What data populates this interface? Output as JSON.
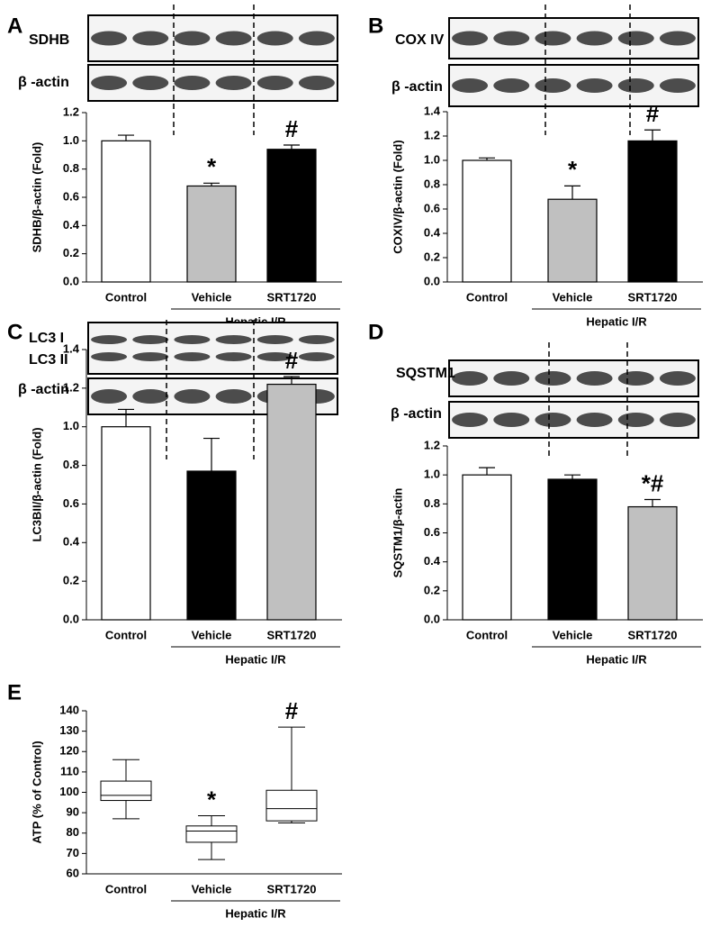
{
  "chart_data": [
    {
      "type": "bar",
      "panel": "A",
      "blot_labels": [
        "SDHB",
        "β -actin"
      ],
      "ylabel": "SDHB/β-actin (Fold)",
      "categories": [
        "Control",
        "Vehicle",
        "SRT1720"
      ],
      "values": [
        1.0,
        0.68,
        0.94
      ],
      "errors": [
        0.04,
        0.02,
        0.03
      ],
      "colors": [
        "#ffffff",
        "#c0c0c0",
        "#000000"
      ],
      "annotations": [
        null,
        "*",
        "#"
      ],
      "group_label": "Hepatic I/R",
      "ylim": [
        0,
        1.2
      ],
      "yticks": [
        {
          "value": 0,
          "label": "0.0"
        },
        {
          "value": 0.2,
          "label": "0.2"
        },
        {
          "value": 0.4,
          "label": "0.4"
        },
        {
          "value": 0.6,
          "label": "0.6"
        },
        {
          "value": 0.8,
          "label": "0.8"
        },
        {
          "value": 1.0,
          "label": "1.0"
        },
        {
          "value": 1.2,
          "label": "1.2"
        }
      ]
    },
    {
      "type": "bar",
      "panel": "B",
      "blot_labels": [
        "COX IV",
        "β -actin"
      ],
      "ylabel": "COXIV/β-actin (Fold)",
      "categories": [
        "Control",
        "Vehicle",
        "SRT1720"
      ],
      "values": [
        1.0,
        0.68,
        1.16
      ],
      "errors": [
        0.02,
        0.11,
        0.09
      ],
      "colors": [
        "#ffffff",
        "#c0c0c0",
        "#000000"
      ],
      "annotations": [
        null,
        "*",
        "#"
      ],
      "group_label": "Hepatic I/R",
      "ylim": [
        0,
        1.4
      ],
      "yticks": [
        {
          "value": 0,
          "label": "0.0"
        },
        {
          "value": 0.2,
          "label": "0.2"
        },
        {
          "value": 0.4,
          "label": "0.4"
        },
        {
          "value": 0.6,
          "label": "0.6"
        },
        {
          "value": 0.8,
          "label": "0.8"
        },
        {
          "value": 1.0,
          "label": "1.0"
        },
        {
          "value": 1.2,
          "label": "1.2"
        },
        {
          "value": 1.4,
          "label": "1.4"
        }
      ]
    },
    {
      "type": "bar",
      "panel": "C",
      "blot_labels": [
        "LC3 I",
        "LC3 II",
        "β -actin"
      ],
      "ylabel": "LC3BII/β-actin (Fold)",
      "categories": [
        "Control",
        "Vehicle",
        "SRT1720"
      ],
      "values": [
        1.0,
        0.77,
        1.22
      ],
      "errors": [
        0.09,
        0.17,
        0.04
      ],
      "colors": [
        "#ffffff",
        "#000000",
        "#c0c0c0"
      ],
      "annotations": [
        null,
        null,
        "#"
      ],
      "group_label": "Hepatic I/R",
      "ylim": [
        0,
        1.4
      ],
      "yticks": [
        {
          "value": 0,
          "label": "0.0"
        },
        {
          "value": 0.2,
          "label": "0.2"
        },
        {
          "value": 0.4,
          "label": "0.4"
        },
        {
          "value": 0.6,
          "label": "0.6"
        },
        {
          "value": 0.8,
          "label": "0.8"
        },
        {
          "value": 1.0,
          "label": "1.0"
        },
        {
          "value": 1.2,
          "label": "1.2"
        },
        {
          "value": 1.4,
          "label": "1.4"
        }
      ]
    },
    {
      "type": "bar",
      "panel": "D",
      "blot_labels": [
        "SQSTM1",
        "β -actin"
      ],
      "ylabel": "SQSTM1/β-actin",
      "categories": [
        "Control",
        "Vehicle",
        "SRT1720"
      ],
      "values": [
        1.0,
        0.97,
        0.78
      ],
      "errors": [
        0.05,
        0.03,
        0.05
      ],
      "colors": [
        "#ffffff",
        "#000000",
        "#c0c0c0"
      ],
      "annotations": [
        null,
        null,
        "*#"
      ],
      "group_label": "Hepatic I/R",
      "ylim": [
        0,
        1.2
      ],
      "yticks": [
        {
          "value": 0,
          "label": "0.0"
        },
        {
          "value": 0.2,
          "label": "0.2"
        },
        {
          "value": 0.4,
          "label": "0.4"
        },
        {
          "value": 0.6,
          "label": "0.6"
        },
        {
          "value": 0.8,
          "label": "0.8"
        },
        {
          "value": 1.0,
          "label": "1.0"
        },
        {
          "value": 1.2,
          "label": "1.2"
        }
      ]
    },
    {
      "type": "box",
      "panel": "E",
      "ylabel": "ATP (% of Control)",
      "categories": [
        "Control",
        "Vehicle",
        "SRT1720"
      ],
      "stats": [
        {
          "min": 87,
          "q1": 96,
          "median": 98.5,
          "q3": 105.5,
          "max": 116
        },
        {
          "min": 67,
          "q1": 75.5,
          "median": 81,
          "q3": 83.5,
          "max": 88.5
        },
        {
          "min": 85,
          "q1": 86,
          "median": 92,
          "q3": 101,
          "max": 132
        }
      ],
      "annotations": [
        null,
        "*",
        "#"
      ],
      "group_label": "Hepatic I/R",
      "ylim": [
        60,
        140
      ],
      "yticks": [
        60,
        70,
        80,
        90,
        100,
        110,
        120,
        130,
        140
      ]
    }
  ]
}
